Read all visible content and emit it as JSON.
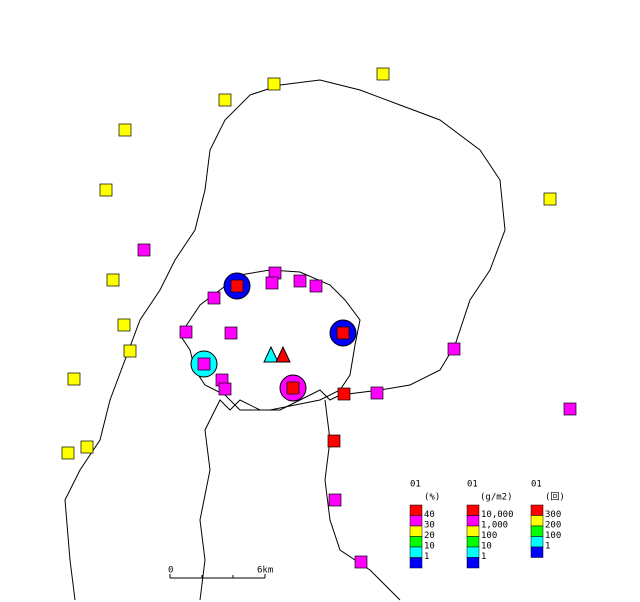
{
  "legends": [
    {
      "title": "01",
      "unit": "(%)",
      "labels": [
        "40",
        "30",
        "20",
        "10",
        "1"
      ],
      "colors": [
        "#ff0000",
        "#ff00ff",
        "#ffff00",
        "#00ff00",
        "#00ffff",
        "#0000ff"
      ]
    },
    {
      "title": "01",
      "unit": "(g/m2)",
      "labels": [
        "10,000",
        "1,000",
        "100",
        "10",
        "1"
      ],
      "colors": [
        "#ff0000",
        "#ff00ff",
        "#ffff00",
        "#00ff00",
        "#00ffff",
        "#0000ff"
      ]
    },
    {
      "title": "01",
      "unit": "(回)",
      "labels": [
        "300",
        "200",
        "100",
        "1"
      ],
      "colors": [
        "#ff0000",
        "#ffff00",
        "#00ff00",
        "#00ffff",
        "#0000ff"
      ]
    }
  ],
  "scale_bar": {
    "start": "0",
    "end": "6km"
  }
}
